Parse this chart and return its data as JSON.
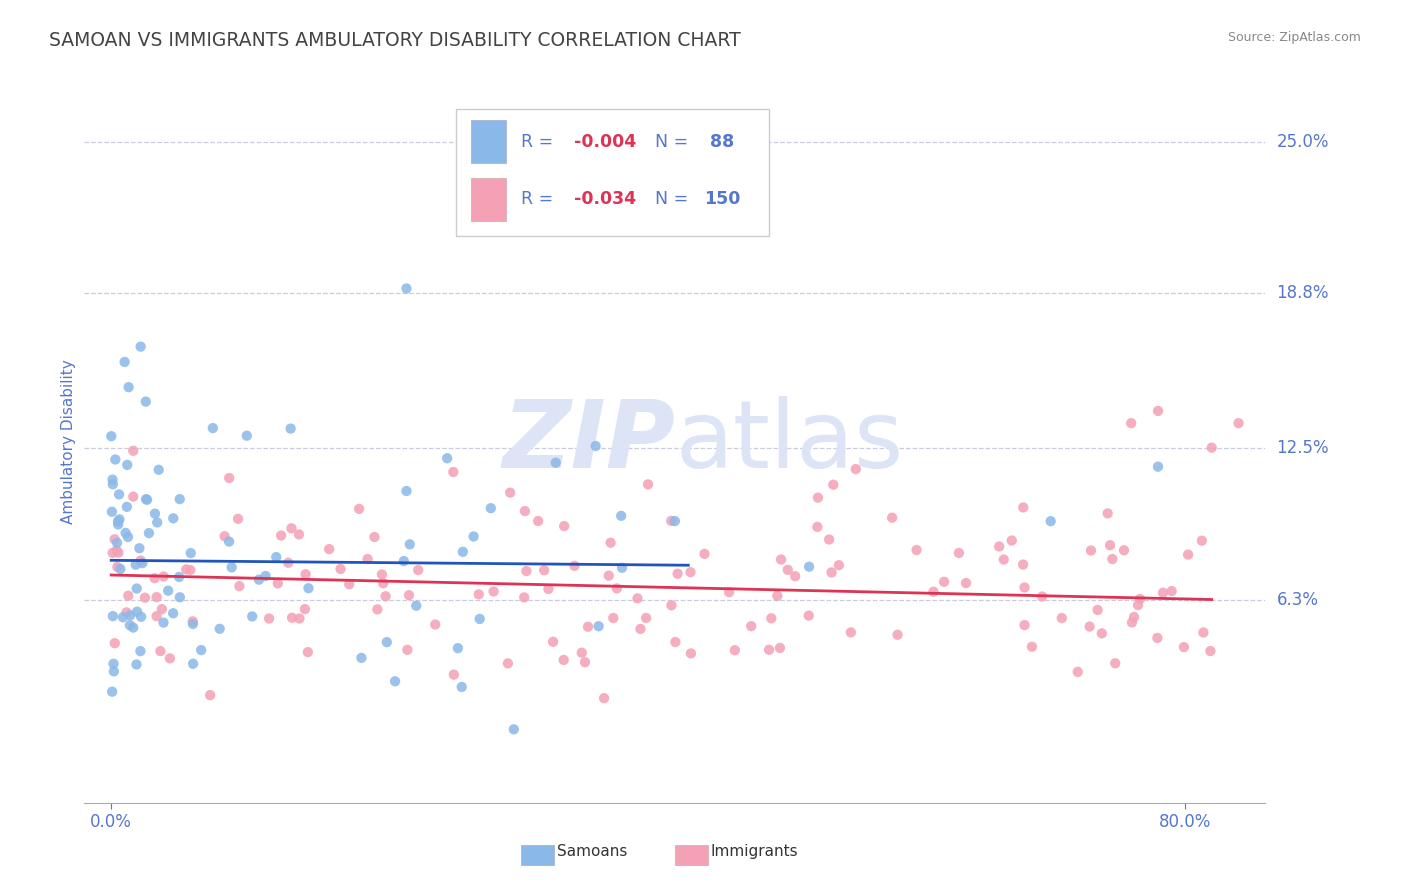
{
  "title": "SAMOAN VS IMMIGRANTS AMBULATORY DISABILITY CORRELATION CHART",
  "source": "Source: ZipAtlas.com",
  "ylabel": "Ambulatory Disability",
  "ytick_labels": [
    "6.3%",
    "12.5%",
    "18.8%",
    "25.0%"
  ],
  "ytick_values": [
    0.063,
    0.125,
    0.188,
    0.25
  ],
  "xtick_values": [
    0.0,
    0.8
  ],
  "xtick_labels": [
    "0.0%",
    "80.0%"
  ],
  "xlim": [
    -0.02,
    0.86
  ],
  "ylim": [
    -0.02,
    0.275
  ],
  "samoans_R": -0.004,
  "samoans_N": 88,
  "immigrants_R": -0.034,
  "immigrants_N": 150,
  "samoan_color": "#8ab8e8",
  "immigrant_color": "#f4a0b5",
  "samoan_line_color": "#2255bb",
  "immigrant_line_color": "#dd3355",
  "grid_color": "#ccccdd",
  "background_color": "#ffffff",
  "title_color": "#444444",
  "source_color": "#888888",
  "label_color": "#5577cc",
  "watermark_color": "#dde4f5",
  "legend_text_color": "#5577cc",
  "legend_R_color": "#dd3355",
  "legend_border_color": "#cccccc"
}
